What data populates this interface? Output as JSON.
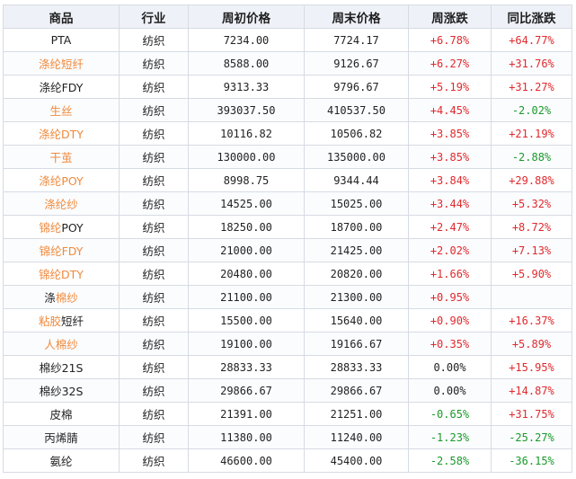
{
  "table": {
    "headers": [
      "商品",
      "行业",
      "周初价格",
      "周末价格",
      "周涨跌",
      "同比涨跌"
    ],
    "rows": [
      {
        "name": "PTA",
        "name_style": "plain",
        "industry": "纺织",
        "week_open": "7234.00",
        "week_close": "7724.17",
        "week_change": "+6.78%",
        "yoy_change": "+64.77%"
      },
      {
        "name": "涤纶短纤",
        "name_style": "orange",
        "industry": "纺织",
        "week_open": "8588.00",
        "week_close": "9126.67",
        "week_change": "+6.27%",
        "yoy_change": "+31.76%"
      },
      {
        "name": "涤纶FDY",
        "name_style": "plain",
        "industry": "纺织",
        "week_open": "9313.33",
        "week_close": "9796.67",
        "week_change": "+5.19%",
        "yoy_change": "+31.27%"
      },
      {
        "name": "生丝",
        "name_style": "orange",
        "industry": "纺织",
        "week_open": "393037.50",
        "week_close": "410537.50",
        "week_change": "+4.45%",
        "yoy_change": "-2.02%"
      },
      {
        "name": "涤纶DTY",
        "name_style": "orange",
        "industry": "纺织",
        "week_open": "10116.82",
        "week_close": "10506.82",
        "week_change": "+3.85%",
        "yoy_change": "+21.19%"
      },
      {
        "name": "干茧",
        "name_style": "orange",
        "industry": "纺织",
        "week_open": "130000.00",
        "week_close": "135000.00",
        "week_change": "+3.85%",
        "yoy_change": "-2.88%"
      },
      {
        "name": "涤纶POY",
        "name_style": "orange",
        "industry": "纺织",
        "week_open": "8998.75",
        "week_close": "9344.44",
        "week_change": "+3.84%",
        "yoy_change": "+29.88%"
      },
      {
        "name": "涤纶纱",
        "name_style": "orange",
        "industry": "纺织",
        "week_open": "14525.00",
        "week_close": "15025.00",
        "week_change": "+3.44%",
        "yoy_change": "+5.32%"
      },
      {
        "name": "锦纶POY",
        "name_style": "orange-prefix",
        "industry": "纺织",
        "week_open": "18250.00",
        "week_close": "18700.00",
        "week_change": "+2.47%",
        "yoy_change": "+8.72%"
      },
      {
        "name": "锦纶FDY",
        "name_style": "orange",
        "industry": "纺织",
        "week_open": "21000.00",
        "week_close": "21425.00",
        "week_change": "+2.02%",
        "yoy_change": "+7.13%"
      },
      {
        "name": "锦纶DTY",
        "name_style": "orange",
        "industry": "纺织",
        "week_open": "20480.00",
        "week_close": "20820.00",
        "week_change": "+1.66%",
        "yoy_change": "+5.90%"
      },
      {
        "name": "涤棉纱",
        "name_style": "orange-suffix",
        "industry": "纺织",
        "week_open": "21100.00",
        "week_close": "21300.00",
        "week_change": "+0.95%",
        "yoy_change": ""
      },
      {
        "name": "粘胶短纤",
        "name_style": "orange-prefix",
        "industry": "纺织",
        "week_open": "15500.00",
        "week_close": "15640.00",
        "week_change": "+0.90%",
        "yoy_change": "+16.37%"
      },
      {
        "name": "人棉纱",
        "name_style": "orange",
        "industry": "纺织",
        "week_open": "19100.00",
        "week_close": "19166.67",
        "week_change": "+0.35%",
        "yoy_change": "+5.89%"
      },
      {
        "name": "棉纱21S",
        "name_style": "plain",
        "industry": "纺织",
        "week_open": "28833.33",
        "week_close": "28833.33",
        "week_change": "0.00%",
        "yoy_change": "+15.95%"
      },
      {
        "name": "棉纱32S",
        "name_style": "plain",
        "industry": "纺织",
        "week_open": "29866.67",
        "week_close": "29866.67",
        "week_change": "0.00%",
        "yoy_change": "+14.87%"
      },
      {
        "name": "皮棉",
        "name_style": "plain",
        "industry": "纺织",
        "week_open": "21391.00",
        "week_close": "21251.00",
        "week_change": "-0.65%",
        "yoy_change": "+31.75%"
      },
      {
        "name": "丙烯腈",
        "name_style": "plain",
        "industry": "纺织",
        "week_open": "11380.00",
        "week_close": "11240.00",
        "week_change": "-1.23%",
        "yoy_change": "-25.27%"
      },
      {
        "name": "氨纶",
        "name_style": "plain",
        "industry": "纺织",
        "week_open": "46600.00",
        "week_close": "45400.00",
        "week_change": "-2.58%",
        "yoy_change": "-36.15%"
      }
    ]
  },
  "colors": {
    "up": "#e0292d",
    "down": "#1a9a2a",
    "link_orange": "#f08a3c",
    "header_bg": "#eef2f8",
    "border": "#d6dbe3"
  }
}
